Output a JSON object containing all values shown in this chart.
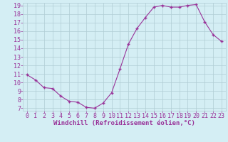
{
  "x": [
    0,
    1,
    2,
    3,
    4,
    5,
    6,
    7,
    8,
    9,
    10,
    11,
    12,
    13,
    14,
    15,
    16,
    17,
    18,
    19,
    20,
    21,
    22,
    23
  ],
  "y": [
    10.9,
    10.3,
    9.4,
    9.3,
    8.4,
    7.8,
    7.7,
    7.1,
    7.0,
    7.6,
    8.8,
    11.6,
    14.5,
    16.3,
    17.6,
    18.8,
    19.0,
    18.8,
    18.8,
    19.0,
    19.1,
    17.1,
    15.6,
    14.8
  ],
  "line_color": "#993399",
  "marker": "+",
  "marker_color": "#993399",
  "bg_color": "#d4eef4",
  "grid_color": "#b0ccd4",
  "xlabel": "Windchill (Refroidissement éolien,°C)",
  "xlabel_color": "#993399",
  "xlabel_fontsize": 6.5,
  "tick_color": "#993399",
  "tick_fontsize": 6,
  "ylim": [
    7,
    19
  ],
  "xlim": [
    -0.5,
    23.5
  ],
  "yticks": [
    7,
    8,
    9,
    10,
    11,
    12,
    13,
    14,
    15,
    16,
    17,
    18,
    19
  ],
  "xticks": [
    0,
    1,
    2,
    3,
    4,
    5,
    6,
    7,
    8,
    9,
    10,
    11,
    12,
    13,
    14,
    15,
    16,
    17,
    18,
    19,
    20,
    21,
    22,
    23
  ]
}
